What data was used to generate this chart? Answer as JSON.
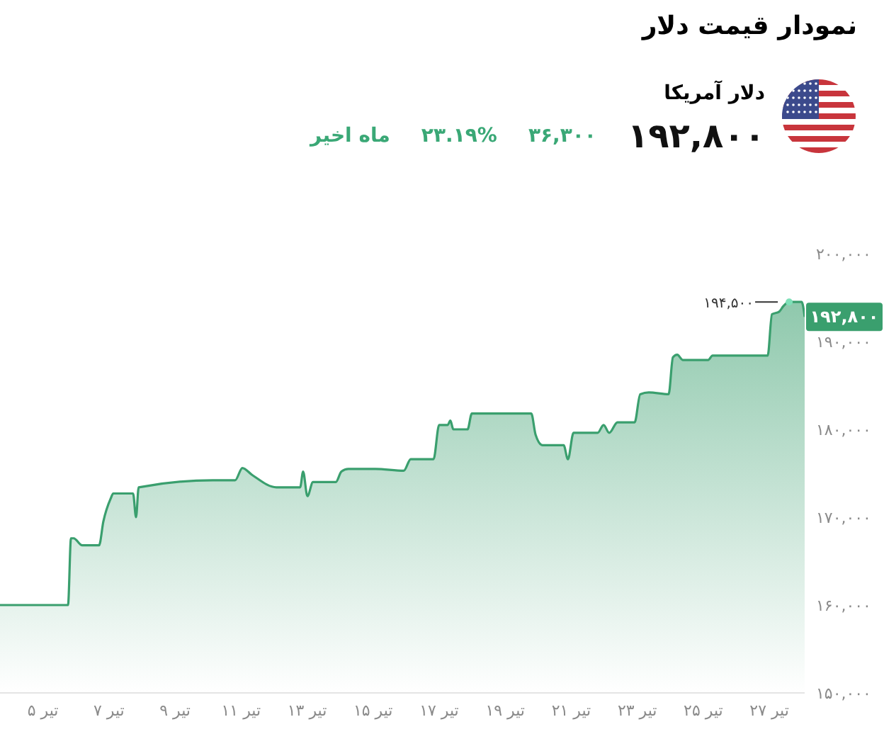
{
  "chart_data": {
    "type": "area",
    "title": "نمودار قیمت دلار",
    "subtitle": "دلار آمریکا",
    "annotations": [
      "۱۹۲,۸۰۰",
      "۳۶,۳۰۰",
      "۲۳.۱۹%",
      "ماه اخیر",
      {
        "text": "۱۹۴,۵۰۰",
        "x": 27.6,
        "y": 194500
      },
      {
        "text": "۱۹۲,۸۰۰",
        "x": 28.07,
        "y": 192800
      }
    ],
    "x": [
      3.7,
      5.76,
      5.85,
      5.93,
      6.19,
      6.7,
      6.83,
      7.05,
      7.13,
      7.73,
      7.82,
      7.9,
      10.14,
      10.82,
      11.04,
      11.34,
      12.07,
      12.79,
      12.88,
      13.01,
      13.18,
      13.87,
      14.04,
      14.25,
      15.07,
      15.93,
      16.14,
      16.83,
      17.0,
      17.26,
      17.34,
      17.43,
      17.86,
      17.99,
      19.79,
      19.92,
      20.13,
      20.77,
      20.9,
      21.07,
      21.8,
      21.98,
      22.15,
      22.4,
      22.92,
      23.09,
      23.35,
      23.95,
      24.08,
      24.21,
      24.38,
      25.15,
      25.28,
      26.95,
      27.08,
      27.3,
      27.42,
      27.6,
      27.98,
      28.07
    ],
    "series": [
      {
        "color": "#3a9f6e",
        "values": [
          160000,
          160000,
          167600,
          167600,
          166800,
          166800,
          169500,
          172100,
          172700,
          172700,
          170000,
          173400,
          174200,
          174200,
          175600,
          174800,
          173400,
          173400,
          175200,
          172400,
          174000,
          174000,
          175200,
          175500,
          175500,
          175300,
          176600,
          176600,
          180500,
          180500,
          181000,
          180000,
          180000,
          181800,
          181800,
          179400,
          178200,
          178200,
          176600,
          179600,
          179600,
          180500,
          179600,
          180800,
          180800,
          184000,
          184200,
          184000,
          188200,
          188500,
          187900,
          187900,
          188400,
          188400,
          193100,
          193400,
          194000,
          194500,
          194500,
          192800
        ]
      }
    ],
    "xlim": [
      3.7,
      28.07
    ],
    "xticks": [
      {
        "value": 5,
        "label": "۵ تیر"
      },
      {
        "value": 7,
        "label": "۷ تیر"
      },
      {
        "value": 9,
        "label": "۹ تیر"
      },
      {
        "value": 11,
        "label": "۱۱ تیر"
      },
      {
        "value": 13,
        "label": "۱۳ تیر"
      },
      {
        "value": 15,
        "label": "۱۵ تیر"
      },
      {
        "value": 17,
        "label": "۱۷ تیر"
      },
      {
        "value": 19,
        "label": "۱۹ تیر"
      },
      {
        "value": 21,
        "label": "۲۱ تیر"
      },
      {
        "value": 23,
        "label": "۲۳ تیر"
      },
      {
        "value": 25,
        "label": "۲۵ تیر"
      },
      {
        "value": 27,
        "label": "۲۷ تیر"
      }
    ],
    "ylim": [
      150000,
      200000
    ],
    "yticks": [
      {
        "value": 150000,
        "label": "۱۵۰,۰۰۰"
      },
      {
        "value": 160000,
        "label": "۱۶۰,۰۰۰"
      },
      {
        "value": 170000,
        "label": "۱۷۰,۰۰۰"
      },
      {
        "value": 180000,
        "label": "۱۸۰,۰۰۰"
      },
      {
        "value": 190000,
        "label": "۱۹۰,۰۰۰"
      },
      {
        "value": 200000,
        "label": "۲۰۰,۰۰۰"
      }
    ],
    "grid": false,
    "legend": false,
    "marker": "none",
    "line_style": "solid"
  }
}
